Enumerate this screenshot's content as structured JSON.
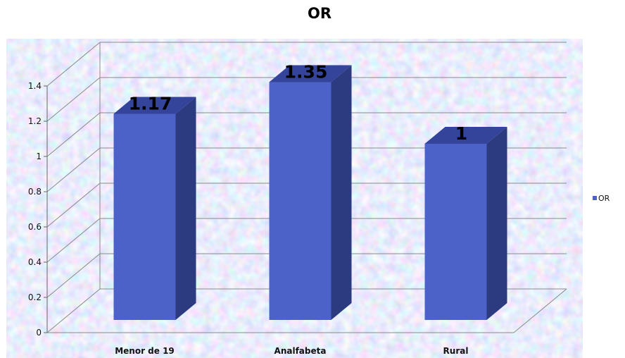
{
  "chart_data": {
    "type": "bar",
    "title": "OR",
    "categories": [
      "Menor de 19",
      "Analfabeta",
      "Rural"
    ],
    "series": [
      {
        "name": "OR",
        "values": [
          1.17,
          1.35,
          1
        ]
      }
    ],
    "data_labels": [
      "1.17",
      "1.35",
      "1"
    ],
    "y_ticks": [
      "0",
      "0.2",
      "0.4",
      "0.6",
      "0.8",
      "1",
      "1.2",
      "1.4"
    ],
    "ylim": [
      0,
      1.4
    ],
    "grid": true,
    "legend_position": "right",
    "style": "3d",
    "colors": {
      "bar_front": "#4d62c8",
      "bar_side": "#2c3a80",
      "bar_top": "#34449a",
      "background": "#cdd2ee"
    }
  }
}
